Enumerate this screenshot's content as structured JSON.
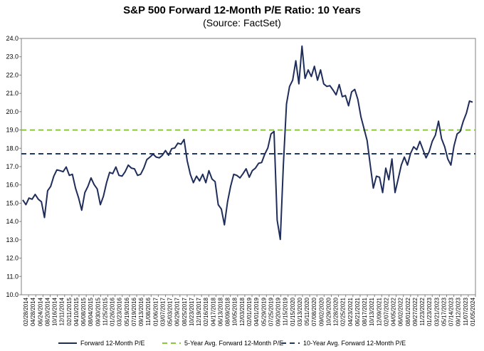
{
  "chart_data": {
    "type": "line",
    "title": "S&P 500 Forward 12-Month P/E Ratio: 10 Years",
    "subtitle": "(Source: FactSet)",
    "xlabel": "",
    "ylabel": "",
    "ylim": [
      10.0,
      24.0
    ],
    "yticks": [
      "10.0",
      "11.0",
      "12.0",
      "13.0",
      "14.0",
      "15.0",
      "16.0",
      "17.0",
      "18.0",
      "19.0",
      "20.0",
      "21.0",
      "22.0",
      "23.0",
      "24.0"
    ],
    "xticks": [
      "02/28/2014",
      "04/28/2014",
      "06/24/2014",
      "08/20/2014",
      "10/16/2014",
      "12/11/2014",
      "02/11/2015",
      "04/10/2015",
      "06/08/2015",
      "08/04/2015",
      "09/30/2015",
      "11/25/2015",
      "01/26/2016",
      "03/23/2016",
      "05/19/2016",
      "07/19/2016",
      "09/13/2016",
      "11/08/2016",
      "01/06/2017",
      "03/07/2017",
      "05/03/2017",
      "06/29/2017",
      "08/25/2017",
      "10/23/2017",
      "12/19/2017",
      "02/16/2018",
      "04/17/2018",
      "06/13/2018",
      "08/09/2018",
      "10/05/2018",
      "12/03/2018",
      "02/01/2019",
      "04/01/2019",
      "05/29/2019",
      "07/25/2019",
      "09/20/2019",
      "11/15/2019",
      "01/15/2020",
      "03/13/2020",
      "05/11/2020",
      "07/08/2020",
      "09/02/2020",
      "10/29/2020",
      "12/28/2020",
      "02/25/2021",
      "04/23/2021",
      "06/21/2021",
      "08/17/2021",
      "10/13/2021",
      "12/09/2021",
      "02/07/2022",
      "04/05/2022",
      "06/02/2022",
      "08/01/2022",
      "09/27/2022",
      "11/23/2022",
      "01/23/2023",
      "03/21/2023",
      "05/17/2023",
      "07/14/2023",
      "09/12/2023",
      "11/07/2023",
      "01/05/2024"
    ],
    "series": [
      {
        "name": "Forward 12-Month P/E",
        "color": "#1f2d5a",
        "style": "solid",
        "values": [
          15.1,
          15.0,
          15.2,
          15.3,
          15.4,
          15.3,
          15.0,
          14.3,
          15.6,
          16.0,
          16.4,
          16.9,
          16.7,
          16.8,
          16.9,
          16.6,
          16.5,
          15.9,
          15.2,
          14.7,
          15.5,
          16.0,
          16.3,
          16.1,
          15.7,
          15.0,
          15.3,
          16.2,
          16.6,
          16.7,
          16.9,
          16.6,
          16.4,
          16.8,
          17.0,
          17.0,
          16.8,
          16.6,
          16.5,
          17.0,
          17.3,
          17.6,
          17.6,
          17.6,
          17.4,
          17.7,
          17.8,
          17.7,
          17.9,
          18.1,
          18.2,
          18.3,
          18.4,
          17.4,
          16.5,
          16.2,
          16.4,
          16.3,
          16.5,
          16.2,
          16.7,
          16.4,
          16.1,
          15.0,
          14.6,
          13.9,
          15.0,
          16.0,
          16.5,
          16.6,
          16.3,
          16.7,
          16.8,
          16.5,
          16.7,
          17.0,
          17.1,
          17.3,
          17.6,
          18.1,
          18.7,
          19.0,
          14.0,
          13.1,
          17.0,
          20.5,
          21.3,
          21.8,
          22.7,
          21.6,
          23.5,
          21.9,
          22.2,
          22.0,
          22.4,
          21.8,
          22.2,
          21.6,
          21.3,
          21.5,
          21.1,
          21.0,
          21.4,
          20.9,
          20.8,
          20.4,
          21.0,
          21.3,
          20.6,
          19.8,
          19.0,
          18.5,
          17.0,
          15.9,
          16.4,
          16.5,
          15.5,
          17.0,
          16.2,
          17.5,
          15.5,
          16.4,
          17.0,
          17.6,
          17.0,
          17.8,
          18.0,
          18.0,
          18.3,
          18.0,
          17.4,
          17.9,
          18.3,
          18.8,
          19.4,
          18.6,
          18.0,
          17.5,
          17.0,
          18.2,
          18.7,
          19.0,
          19.4,
          20.0,
          20.5,
          20.6
        ]
      },
      {
        "name": "5-Year Avg. Forward 12-Month P/E",
        "color": "#8cc63f",
        "style": "dashed",
        "value": 19.0
      },
      {
        "name": "10-Year Avg. Forward 12-Month P/E",
        "color": "#1f3864",
        "style": "dashed",
        "value": 17.7
      }
    ],
    "grid": false,
    "legend_position": "bottom"
  }
}
